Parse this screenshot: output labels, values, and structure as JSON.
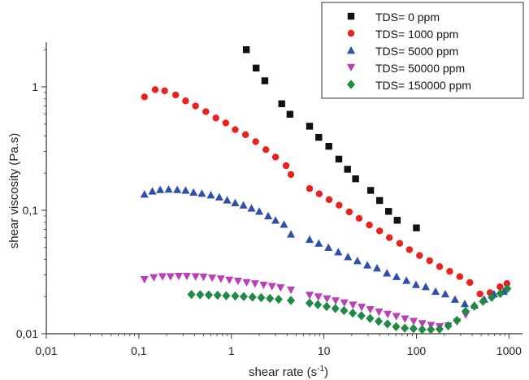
{
  "chart_data": {
    "type": "scatter",
    "xscale": "log",
    "yscale": "log",
    "xlim": [
      0.01,
      1400
    ],
    "ylim": [
      0.01,
      2.3
    ],
    "xlabel": "shear rate (s",
    "xlabel_sup": "-1",
    "xlabel_end": ")",
    "ylabel": "shear viscosity (Pa.s)",
    "xticks": [
      {
        "value": 0.01,
        "label": "0,01"
      },
      {
        "value": 0.1,
        "label": "0,1"
      },
      {
        "value": 1,
        "label": "1"
      },
      {
        "value": 10,
        "label": "10"
      },
      {
        "value": 100,
        "label": "100"
      },
      {
        "value": 1000,
        "label": "1000"
      }
    ],
    "yticks": [
      {
        "value": 0.01,
        "label": "0,01"
      },
      {
        "value": 0.1,
        "label": "0,1"
      },
      {
        "value": 1,
        "label": "1"
      }
    ],
    "legend_position": "top-right",
    "series": [
      {
        "name": "TDS= 0 ppm",
        "marker": "square",
        "color": "#111111",
        "points": [
          [
            1.45,
            2.0
          ],
          [
            1.85,
            1.42
          ],
          [
            2.3,
            1.12
          ],
          [
            3.5,
            0.73
          ],
          [
            4.3,
            0.6
          ],
          [
            7.0,
            0.48
          ],
          [
            8.8,
            0.39
          ],
          [
            11.3,
            0.33
          ],
          [
            14.5,
            0.26
          ],
          [
            18.0,
            0.215
          ],
          [
            22.0,
            0.18
          ],
          [
            32.0,
            0.145
          ],
          [
            40.0,
            0.12
          ],
          [
            50.0,
            0.098
          ],
          [
            62.0,
            0.083
          ],
          [
            100.0,
            0.072
          ]
        ]
      },
      {
        "name": "TDS= 1000 ppm",
        "marker": "circle",
        "color": "#e8221d",
        "points": [
          [
            0.115,
            0.83
          ],
          [
            0.15,
            0.95
          ],
          [
            0.19,
            0.93
          ],
          [
            0.25,
            0.86
          ],
          [
            0.32,
            0.77
          ],
          [
            0.41,
            0.7
          ],
          [
            0.53,
            0.63
          ],
          [
            0.68,
            0.56
          ],
          [
            0.87,
            0.51
          ],
          [
            1.1,
            0.45
          ],
          [
            1.42,
            0.41
          ],
          [
            1.83,
            0.36
          ],
          [
            2.36,
            0.31
          ],
          [
            3.0,
            0.27
          ],
          [
            3.9,
            0.23
          ],
          [
            4.4,
            0.195
          ],
          [
            7.0,
            0.15
          ],
          [
            8.9,
            0.136
          ],
          [
            11.4,
            0.122
          ],
          [
            14.6,
            0.11
          ],
          [
            18.8,
            0.097
          ],
          [
            24.0,
            0.086
          ],
          [
            31.0,
            0.076
          ],
          [
            40.0,
            0.068
          ],
          [
            51.0,
            0.06
          ],
          [
            66.0,
            0.054
          ],
          [
            84.0,
            0.048
          ],
          [
            108.0,
            0.043
          ],
          [
            139.0,
            0.039
          ],
          [
            178.0,
            0.035
          ],
          [
            229.0,
            0.032
          ],
          [
            294.0,
            0.029
          ],
          [
            378.0,
            0.026
          ],
          [
            486.0,
            0.021
          ],
          [
            625.0,
            0.0215
          ],
          [
            800.0,
            0.024
          ],
          [
            950.0,
            0.0255
          ]
        ]
      },
      {
        "name": "TDS= 5000 ppm",
        "marker": "triangle-up",
        "color": "#2f4fae",
        "points": [
          [
            0.115,
            0.135
          ],
          [
            0.14,
            0.143
          ],
          [
            0.17,
            0.147
          ],
          [
            0.21,
            0.148
          ],
          [
            0.26,
            0.147
          ],
          [
            0.32,
            0.145
          ],
          [
            0.39,
            0.14
          ],
          [
            0.48,
            0.137
          ],
          [
            0.6,
            0.133
          ],
          [
            0.74,
            0.128
          ],
          [
            0.9,
            0.121
          ],
          [
            1.1,
            0.115
          ],
          [
            1.35,
            0.11
          ],
          [
            1.65,
            0.104
          ],
          [
            2.0,
            0.098
          ],
          [
            2.5,
            0.09
          ],
          [
            3.0,
            0.083
          ],
          [
            3.7,
            0.077
          ],
          [
            4.4,
            0.064
          ],
          [
            7.0,
            0.058
          ],
          [
            8.8,
            0.054
          ],
          [
            11.2,
            0.05
          ],
          [
            14.3,
            0.046
          ],
          [
            18.2,
            0.042
          ],
          [
            23.0,
            0.039
          ],
          [
            29.5,
            0.036
          ],
          [
            37.5,
            0.034
          ],
          [
            48.0,
            0.031
          ],
          [
            61.0,
            0.029
          ],
          [
            78.0,
            0.027
          ],
          [
            99.0,
            0.025
          ],
          [
            126.0,
            0.024
          ],
          [
            161.0,
            0.022
          ],
          [
            205.0,
            0.021
          ],
          [
            261.0,
            0.019
          ],
          [
            333.0,
            0.0175
          ],
          [
            425.0,
            0.017
          ],
          [
            541.0,
            0.019
          ],
          [
            690.0,
            0.021
          ],
          [
            880.0,
            0.022
          ]
        ]
      },
      {
        "name": "TDS= 50000 ppm",
        "marker": "triangle-down",
        "color": "#bb3fb6",
        "points": [
          [
            0.115,
            0.0275
          ],
          [
            0.145,
            0.0285
          ],
          [
            0.18,
            0.029
          ],
          [
            0.22,
            0.029
          ],
          [
            0.27,
            0.0292
          ],
          [
            0.33,
            0.0292
          ],
          [
            0.41,
            0.029
          ],
          [
            0.5,
            0.0288
          ],
          [
            0.62,
            0.0283
          ],
          [
            0.77,
            0.0278
          ],
          [
            0.95,
            0.0272
          ],
          [
            1.18,
            0.0267
          ],
          [
            1.46,
            0.026
          ],
          [
            1.8,
            0.0254
          ],
          [
            2.23,
            0.0248
          ],
          [
            2.75,
            0.0242
          ],
          [
            3.4,
            0.0236
          ],
          [
            4.4,
            0.0226
          ],
          [
            7.0,
            0.0205
          ],
          [
            8.7,
            0.0199
          ],
          [
            10.8,
            0.0192
          ],
          [
            13.4,
            0.0185
          ],
          [
            16.6,
            0.0178
          ],
          [
            20.6,
            0.0171
          ],
          [
            25.6,
            0.0164
          ],
          [
            31.7,
            0.0157
          ],
          [
            39.4,
            0.015
          ],
          [
            48.9,
            0.0144
          ],
          [
            60.6,
            0.0138
          ],
          [
            75.2,
            0.0132
          ],
          [
            93.3,
            0.0126
          ],
          [
            115.8,
            0.0121
          ],
          [
            143.7,
            0.0117
          ],
          [
            178.3,
            0.0114
          ],
          [
            221.0,
            0.0116
          ],
          [
            275.0,
            0.0125
          ],
          [
            341.0,
            0.0142
          ]
        ]
      },
      {
        "name": "TDS= 150000 ppm",
        "marker": "diamond",
        "color": "#1e8a44",
        "points": [
          [
            0.37,
            0.0208
          ],
          [
            0.46,
            0.0207
          ],
          [
            0.57,
            0.0206
          ],
          [
            0.71,
            0.0205
          ],
          [
            0.88,
            0.0203
          ],
          [
            1.1,
            0.0202
          ],
          [
            1.36,
            0.02
          ],
          [
            1.69,
            0.0198
          ],
          [
            2.1,
            0.0196
          ],
          [
            2.61,
            0.0193
          ],
          [
            3.24,
            0.019
          ],
          [
            4.4,
            0.0186
          ],
          [
            7.0,
            0.0177
          ],
          [
            8.6,
            0.0172
          ],
          [
            10.7,
            0.0166
          ],
          [
            13.3,
            0.016
          ],
          [
            16.5,
            0.0154
          ],
          [
            20.5,
            0.0147
          ],
          [
            25.4,
            0.014
          ],
          [
            31.5,
            0.0133
          ],
          [
            39.1,
            0.0126
          ],
          [
            48.6,
            0.012
          ],
          [
            60.3,
            0.0114
          ],
          [
            74.8,
            0.0111
          ],
          [
            92.9,
            0.011
          ],
          [
            115.3,
            0.0108
          ],
          [
            143.1,
            0.0108
          ],
          [
            177.6,
            0.0109
          ],
          [
            220.5,
            0.0116
          ],
          [
            273.8,
            0.0128
          ],
          [
            339.9,
            0.0152
          ],
          [
            422.0,
            0.0167
          ],
          [
            523.9,
            0.0183
          ],
          [
            650.5,
            0.0197
          ],
          [
            807.6,
            0.0212
          ],
          [
            960.0,
            0.0232
          ]
        ]
      }
    ]
  }
}
